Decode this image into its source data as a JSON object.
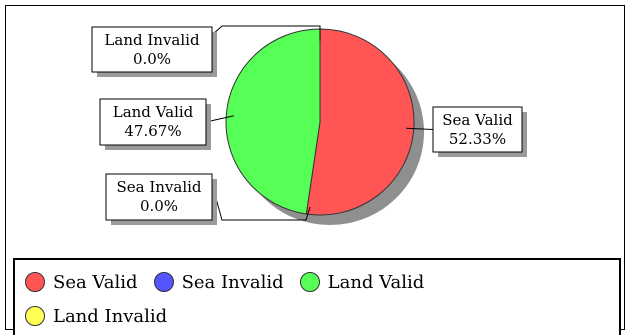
{
  "chart_data": {
    "type": "pie",
    "slices": [
      {
        "name": "Sea Valid",
        "value": 52.33,
        "value_label": "52.33%",
        "color": "#ff5555"
      },
      {
        "name": "Sea Invalid",
        "value": 0.0,
        "value_label": "0.0%",
        "color": "#5555ff"
      },
      {
        "name": "Land Valid",
        "value": 47.67,
        "value_label": "47.67%",
        "color": "#55ff55"
      },
      {
        "name": "Land Invalid",
        "value": 0.0,
        "value_label": "0.0%",
        "color": "#ffff55"
      }
    ],
    "title": "",
    "legend_position": "bottom",
    "shadow": true
  }
}
